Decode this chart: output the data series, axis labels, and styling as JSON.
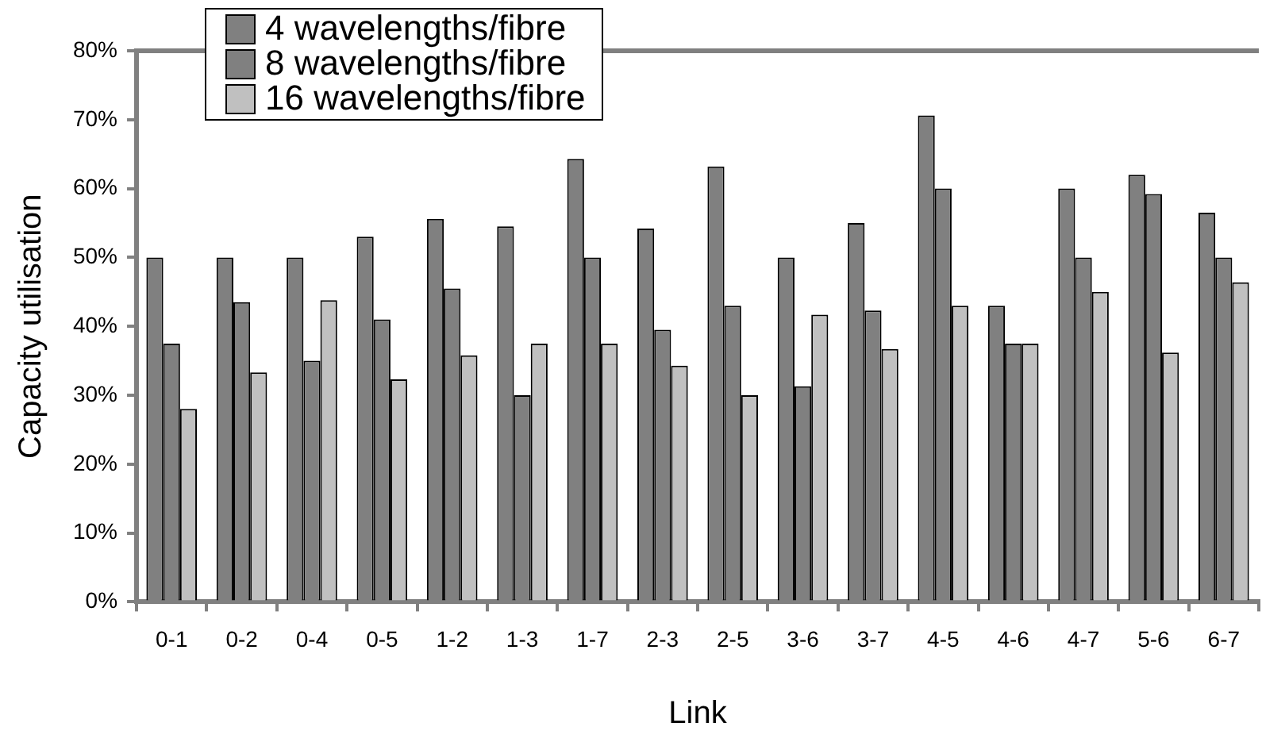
{
  "chart_data": {
    "type": "bar",
    "xlabel": "Link",
    "ylabel": "Capacity utilisation",
    "categories": [
      "0-1",
      "0-2",
      "0-4",
      "0-5",
      "1-2",
      "1-3",
      "1-7",
      "2-3",
      "2-5",
      "3-6",
      "3-7",
      "4-5",
      "4-6",
      "4-7",
      "5-6",
      "6-7"
    ],
    "series": [
      {
        "name": "4 wavelengths/fibre",
        "color": "#808080",
        "values": [
          50,
          50,
          50,
          53,
          55.6,
          54.5,
          64.3,
          54.2,
          63.2,
          50,
          55,
          70.6,
          43,
          60,
          62,
          56.5
        ]
      },
      {
        "name": "8 wavelengths/fibre",
        "color": "#808080",
        "values": [
          37.5,
          43.5,
          35,
          41,
          45.5,
          30,
          50,
          39.5,
          43,
          31.3,
          42.3,
          60,
          37.5,
          50,
          59.2,
          50
        ]
      },
      {
        "name": "16 wavelengths/fibre",
        "color": "#c0c0c0",
        "values": [
          28,
          33.3,
          43.8,
          32.3,
          35.8,
          37.5,
          37.5,
          34.3,
          30,
          41.7,
          36.7,
          43,
          37.5,
          45,
          36.2,
          46.4
        ]
      }
    ],
    "ylim": [
      0,
      80
    ],
    "yticks": [
      {
        "value": 0,
        "label": "0%"
      },
      {
        "value": 10,
        "label": "10%"
      },
      {
        "value": 20,
        "label": "20%"
      },
      {
        "value": 30,
        "label": "30%"
      },
      {
        "value": 40,
        "label": "40%"
      },
      {
        "value": 50,
        "label": "50%"
      },
      {
        "value": 60,
        "label": "60%"
      },
      {
        "value": 70,
        "label": "70%"
      },
      {
        "value": 80,
        "label": "80%"
      }
    ],
    "grid": false,
    "legend": "top"
  }
}
